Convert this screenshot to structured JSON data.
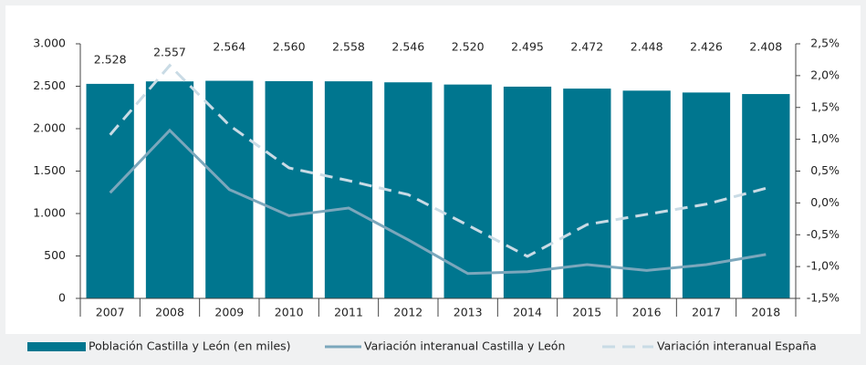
{
  "chart_data": {
    "type": "bar_line",
    "categories": [
      "2007",
      "2008",
      "2009",
      "2010",
      "2011",
      "2012",
      "2013",
      "2014",
      "2015",
      "2016",
      "2017",
      "2018"
    ],
    "series": [
      {
        "name": "Población Castilla y León (en miles)",
        "type": "bar",
        "color": "#00768f",
        "values": [
          2528,
          2557,
          2564,
          2560,
          2558,
          2546,
          2520,
          2495,
          2472,
          2448,
          2426,
          2408
        ],
        "value_labels": [
          "2.528",
          "2.557",
          "2.564",
          "2.560",
          "2.558",
          "2.546",
          "2.520",
          "2.495",
          "2.472",
          "2.448",
          "2.426",
          "2.408"
        ]
      },
      {
        "name": "Variación interanual Castilla y León",
        "type": "line",
        "axis": "y2",
        "color": "#7ba7bc",
        "dash": false,
        "values": [
          0.16,
          1.14,
          0.21,
          -0.2,
          -0.08,
          -0.58,
          -1.11,
          -1.08,
          -0.97,
          -1.06,
          -0.97,
          -0.81
        ]
      },
      {
        "name": "Variación interanual España",
        "type": "line",
        "axis": "y2",
        "color": "#c9dbe5",
        "dash": true,
        "values": [
          1.07,
          2.16,
          1.22,
          0.55,
          0.35,
          0.13,
          -0.35,
          -0.84,
          -0.34,
          -0.18,
          -0.02,
          0.23
        ]
      }
    ],
    "ylim": [
      0,
      3000
    ],
    "yticks": [
      0,
      500,
      {
        "value": 1000,
        "label": "1.000"
      },
      {
        "value": 1500,
        "label": "1.500"
      },
      {
        "value": 2000,
        "label": "2.000"
      },
      {
        "value": 2500,
        "label": "2.500"
      },
      {
        "value": 3000,
        "label": "3.000"
      }
    ],
    "y2lim": [
      -1.5,
      2.5
    ],
    "y2ticks": [
      {
        "value": -1.5,
        "label": "-1,5%"
      },
      {
        "value": -1,
        "label": "-1,0%"
      },
      {
        "value": -0.5,
        "label": "-0,5%"
      },
      {
        "value": 0,
        "label": "0,0%"
      },
      {
        "value": 0.5,
        "label": "0,5%"
      },
      {
        "value": 1,
        "label": "1,0%"
      },
      {
        "value": 1.5,
        "label": "1,5%"
      },
      {
        "value": 2,
        "label": "2,0%"
      },
      {
        "value": 2.5,
        "label": "2,5%"
      }
    ],
    "legend": "bottom"
  }
}
